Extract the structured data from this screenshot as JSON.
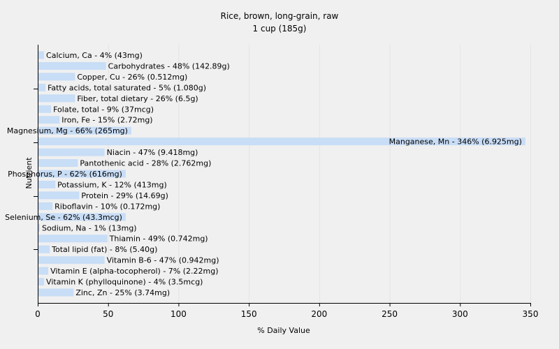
{
  "chart_data": {
    "type": "bar",
    "orientation": "horizontal",
    "title": "Rice, brown, long-grain, raw",
    "subtitle": "1 cup (185g)",
    "xlabel": "% Daily Value",
    "ylabel": "Nutrient",
    "xlim": [
      0,
      350
    ],
    "xticks": [
      0,
      50,
      100,
      150,
      200,
      250,
      300,
      350
    ],
    "grid": true,
    "bar_color": "#c8ddf6",
    "bars": [
      {
        "name": "Calcium, Ca",
        "value": 4,
        "amount": "43mg",
        "label": "Calcium, Ca - 4% (43mg)"
      },
      {
        "name": "Carbohydrates",
        "value": 48,
        "amount": "142.89g",
        "label": "Carbohydrates - 48% (142.89g)"
      },
      {
        "name": "Copper, Cu",
        "value": 26,
        "amount": "0.512mg",
        "label": "Copper, Cu - 26% (0.512mg)"
      },
      {
        "name": "Fatty acids, total saturated",
        "value": 5,
        "amount": "1.080g",
        "label": "Fatty acids, total saturated - 5% (1.080g)"
      },
      {
        "name": "Fiber, total dietary",
        "value": 26,
        "amount": "6.5g",
        "label": "Fiber, total dietary - 26% (6.5g)"
      },
      {
        "name": "Folate, total",
        "value": 9,
        "amount": "37mcg",
        "label": "Folate, total - 9% (37mcg)"
      },
      {
        "name": "Iron, Fe",
        "value": 15,
        "amount": "2.72mg",
        "label": "Iron, Fe - 15% (2.72mg)"
      },
      {
        "name": "Magnesium, Mg",
        "value": 66,
        "amount": "265mg",
        "label": "Magnesium, Mg - 66% (265mg)"
      },
      {
        "name": "Manganese, Mn",
        "value": 346,
        "amount": "6.925mg",
        "label": "Manganese, Mn - 346% (6.925mg)"
      },
      {
        "name": "Niacin",
        "value": 47,
        "amount": "9.418mg",
        "label": "Niacin - 47% (9.418mg)"
      },
      {
        "name": "Pantothenic acid",
        "value": 28,
        "amount": "2.762mg",
        "label": "Pantothenic acid - 28% (2.762mg)"
      },
      {
        "name": "Phosphorus, P",
        "value": 62,
        "amount": "616mg",
        "label": "Phosphorus, P - 62% (616mg)"
      },
      {
        "name": "Potassium, K",
        "value": 12,
        "amount": "413mg",
        "label": "Potassium, K - 12% (413mg)"
      },
      {
        "name": "Protein",
        "value": 29,
        "amount": "14.69g",
        "label": "Protein - 29% (14.69g)"
      },
      {
        "name": "Riboflavin",
        "value": 10,
        "amount": "0.172mg",
        "label": "Riboflavin - 10% (0.172mg)"
      },
      {
        "name": "Selenium, Se",
        "value": 62,
        "amount": "43.3mcg",
        "label": "Selenium, Se - 62% (43.3mcg)"
      },
      {
        "name": "Sodium, Na",
        "value": 1,
        "amount": "13mg",
        "label": "Sodium, Na - 1% (13mg)"
      },
      {
        "name": "Thiamin",
        "value": 49,
        "amount": "0.742mg",
        "label": "Thiamin - 49% (0.742mg)"
      },
      {
        "name": "Total lipid (fat)",
        "value": 8,
        "amount": "5.40g",
        "label": "Total lipid (fat) - 8% (5.40g)"
      },
      {
        "name": "Vitamin B-6",
        "value": 47,
        "amount": "0.942mg",
        "label": "Vitamin B-6 - 47% (0.942mg)"
      },
      {
        "name": "Vitamin E (alpha-tocopherol)",
        "value": 7,
        "amount": "2.22mg",
        "label": "Vitamin E (alpha-tocopherol) - 7% (2.22mg)"
      },
      {
        "name": "Vitamin K (phylloquinone)",
        "value": 4,
        "amount": "3.5mcg",
        "label": "Vitamin K (phylloquinone) - 4% (3.5mcg)"
      },
      {
        "name": "Zinc, Zn",
        "value": 25,
        "amount": "3.74mg",
        "label": "Zinc, Zn - 25% (3.74mg)"
      }
    ]
  }
}
